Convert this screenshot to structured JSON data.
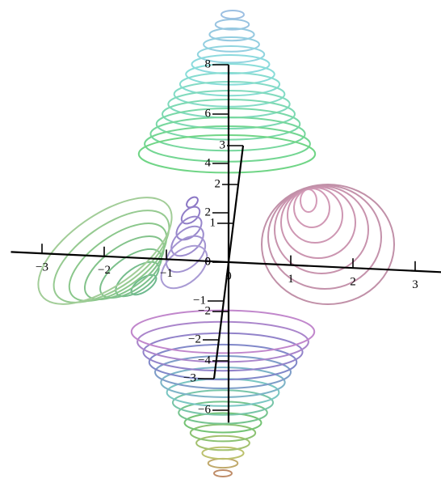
{
  "chart_data": {
    "type": "contour3d",
    "xlim": [
      -3.5,
      3.5
    ],
    "xticks": [
      {
        "value": -3,
        "label": "−3"
      },
      {
        "value": -2,
        "label": "−2"
      },
      {
        "value": -1,
        "label": "−1"
      },
      0,
      1,
      2,
      3
    ],
    "ylim": [
      -3,
      3
    ],
    "yticks": [
      {
        "value": -3,
        "label": "−3"
      },
      {
        "value": -2,
        "label": "−2"
      },
      {
        "value": -1,
        "label": "−1"
      },
      0,
      1,
      2,
      3
    ],
    "zlim": [
      -6.5,
      8
    ],
    "zticks": [
      {
        "value": -6,
        "label": "−6"
      },
      {
        "value": -4,
        "label": "−4"
      },
      {
        "value": -2,
        "label": "−2"
      },
      0,
      2,
      4,
      6,
      8
    ]
  }
}
